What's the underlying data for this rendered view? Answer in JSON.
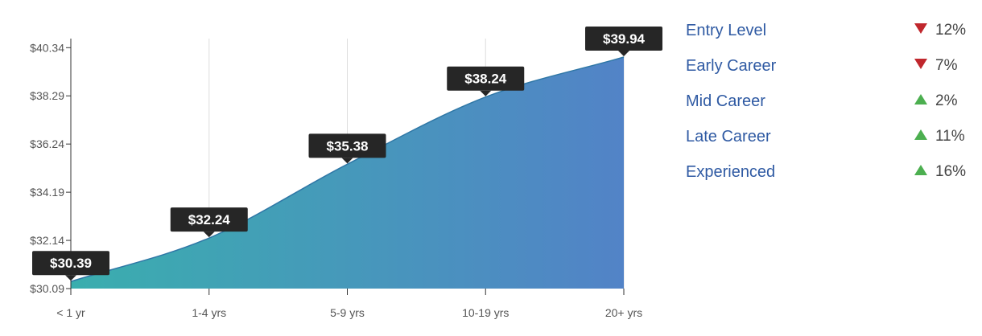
{
  "chart_data": {
    "type": "area",
    "categories": [
      "< 1 yr",
      "1-4 yrs",
      "5-9 yrs",
      "10-19 yrs",
      "20+ yrs"
    ],
    "values": [
      30.39,
      32.24,
      35.38,
      38.24,
      39.94
    ],
    "data_labels": [
      "$30.39",
      "$32.24",
      "$35.38",
      "$38.24",
      "$39.94"
    ],
    "y_ticks": [
      30.09,
      32.14,
      34.19,
      36.24,
      38.29,
      40.34
    ],
    "y_tick_labels": [
      "$30.09",
      "$32.14",
      "$34.19",
      "$36.24",
      "$38.29",
      "$40.34"
    ],
    "ylim": [
      30.09,
      41.0
    ],
    "grid": "vertical",
    "colors": {
      "gradient_start": "#3aaeae",
      "gradient_end": "#5283c7",
      "line": "#2f77a6",
      "callout_bg": "#262626",
      "callout_text": "#ffffff",
      "grid": "#dddddd",
      "axis": "#333333"
    }
  },
  "legend": {
    "items": [
      {
        "label": "Entry Level",
        "change": "12%",
        "direction": "down"
      },
      {
        "label": "Early Career",
        "change": "7%",
        "direction": "down"
      },
      {
        "label": "Mid Career",
        "change": "2%",
        "direction": "up"
      },
      {
        "label": "Late Career",
        "change": "11%",
        "direction": "up"
      },
      {
        "label": "Experienced",
        "change": "16%",
        "direction": "up"
      }
    ]
  }
}
